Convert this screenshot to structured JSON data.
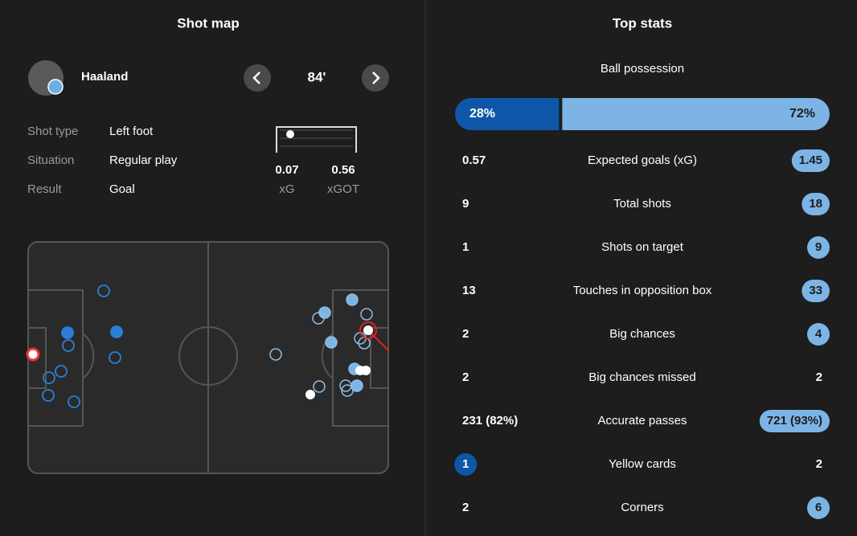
{
  "shot_map": {
    "title": "Shot map",
    "player": "Haaland",
    "minute": "84'",
    "details": [
      {
        "label": "Shot type",
        "value": "Left foot"
      },
      {
        "label": "Situation",
        "value": "Regular play"
      },
      {
        "label": "Result",
        "value": "Goal"
      }
    ],
    "xg": {
      "value": "0.07",
      "label": "xG"
    },
    "xgot": {
      "value": "0.56",
      "label": "xGOT"
    }
  },
  "top_stats": {
    "title": "Top stats",
    "possession": {
      "label": "Ball possession",
      "values": [
        28,
        72
      ],
      "value_labels": [
        "28%",
        "72%"
      ],
      "colors": [
        "#0e57a8",
        "#7cb4e6"
      ]
    },
    "rows": [
      {
        "label": "Expected goals (xG)",
        "home": "0.57",
        "away": "1.45",
        "highlight": "away"
      },
      {
        "label": "Total shots",
        "home": "9",
        "away": "18",
        "highlight": "away"
      },
      {
        "label": "Shots on target",
        "home": "1",
        "away": "9",
        "highlight": "away"
      },
      {
        "label": "Touches in opposition box",
        "home": "13",
        "away": "33",
        "highlight": "away"
      },
      {
        "label": "Big chances",
        "home": "2",
        "away": "4",
        "highlight": "away"
      },
      {
        "label": "Big chances missed",
        "home": "2",
        "away": "2",
        "highlight": "none"
      },
      {
        "label": "Accurate passes",
        "home": "231 (82%)",
        "away": "721 (93%)",
        "highlight": "away"
      },
      {
        "label": "Yellow cards",
        "home": "1",
        "away": "2",
        "highlight": "home"
      },
      {
        "label": "Corners",
        "home": "2",
        "away": "6",
        "highlight": "away"
      }
    ]
  }
}
